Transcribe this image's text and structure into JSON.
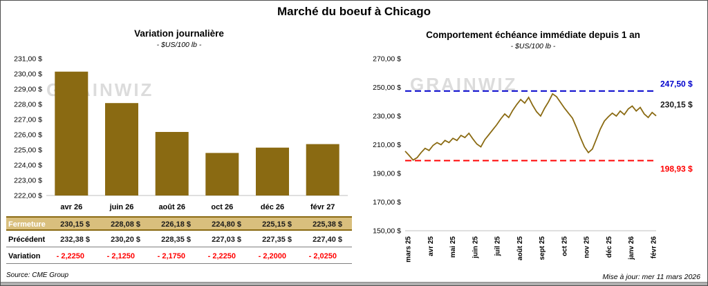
{
  "page": {
    "title": "Marché du boeuf à Chicago",
    "source": "Source: CME Group",
    "updated": "Mise à jour: mer 11 mars 2026"
  },
  "watermark": "GRAINWIZ",
  "colors": {
    "gold": "#8a6a12",
    "tan_row": "#d9bf7d",
    "blue": "#0000cc",
    "red": "#ff0000",
    "watermark_gray": "#dcdcdc"
  },
  "left_table": {
    "rows": [
      {
        "label": "Fermeture",
        "values": [
          "230,15 $",
          "228,08 $",
          "226,18 $",
          "224,80 $",
          "225,15 $",
          "225,38 $"
        ]
      },
      {
        "label": "Précédent",
        "values": [
          "232,38 $",
          "230,20 $",
          "228,35 $",
          "227,03 $",
          "227,35 $",
          "227,40 $"
        ]
      },
      {
        "label": "Variation",
        "values": [
          "- 2,2250",
          "- 2,1250",
          "- 2,1750",
          "- 2,2250",
          "- 2,2000",
          "- 2,0250"
        ]
      }
    ]
  },
  "chart_data": [
    {
      "type": "bar",
      "title": "Variation journalière",
      "subtitle": "- $US/100 lb -",
      "categories": [
        "avr 26",
        "juin 26",
        "août 26",
        "oct 26",
        "déc 26",
        "févr 27"
      ],
      "values": [
        230.15,
        228.08,
        226.18,
        224.8,
        225.15,
        225.38
      ],
      "ylabel": "$US/100 lb",
      "ylim": [
        222,
        231
      ],
      "ytick_step": 1,
      "grid": false,
      "legend": "none",
      "bar_color": "#8a6a12"
    },
    {
      "type": "line",
      "title": "Comportement échéance immédiate depuis 1 an",
      "subtitle": "- $US/100 lb -",
      "x_labels": [
        "mars 25",
        "avr 25",
        "mai 25",
        "juin 25",
        "juil 25",
        "août 25",
        "sept 25",
        "oct 25",
        "nov 25",
        "déc 25",
        "janv 26",
        "févr 26"
      ],
      "values": [
        205.5,
        202.5,
        199.3,
        201.0,
        204.5,
        207.5,
        206.0,
        209.5,
        211.5,
        210.0,
        213.0,
        211.5,
        214.5,
        213.0,
        216.5,
        215.0,
        218.0,
        214.0,
        210.5,
        208.5,
        213.5,
        217.0,
        220.5,
        224.0,
        228.0,
        231.5,
        229.0,
        234.0,
        238.0,
        241.5,
        239.0,
        243.0,
        237.5,
        233.0,
        230.0,
        235.5,
        240.0,
        245.5,
        243.5,
        239.5,
        235.5,
        232.0,
        228.5,
        222.0,
        215.0,
        208.5,
        204.5,
        207.0,
        214.0,
        221.0,
        226.5,
        229.5,
        232.0,
        230.0,
        233.5,
        231.0,
        235.0,
        237.0,
        233.5,
        236.0,
        231.5,
        229.0,
        232.5,
        230.15
      ],
      "ylabel": "$US/100 lb",
      "ylim": [
        150,
        270
      ],
      "ytick_step": 20,
      "grid": false,
      "legend": "none",
      "line_color": "#8a6a12",
      "ref_lines": [
        {
          "value": 247.5,
          "label": "247,50 $",
          "color": "#0000cc"
        },
        {
          "value": 198.93,
          "label": "198,93 $",
          "color": "#ff0000"
        }
      ],
      "end_label": {
        "value": 230.15,
        "label": "230,15 $",
        "color": "#1a1a1a"
      }
    }
  ]
}
